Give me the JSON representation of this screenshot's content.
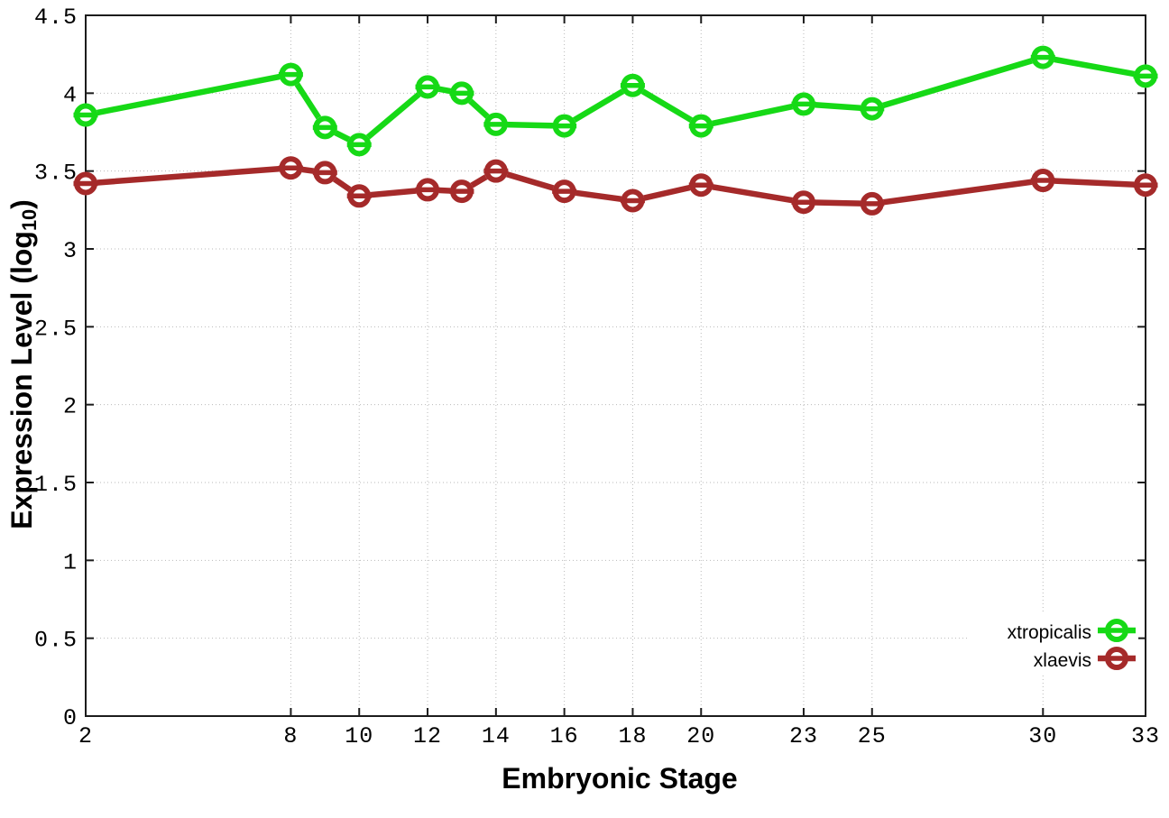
{
  "chart_data": {
    "type": "line",
    "title": "",
    "xlabel": "Embryonic Stage",
    "ylabel": "Expression Level (log10)",
    "ylabel_main": "Expression Level (log",
    "ylabel_sub": "10",
    "ylabel_close": ")",
    "xlim": [
      2,
      33
    ],
    "ylim": [
      0,
      4.5
    ],
    "x_tick_values": [
      2,
      8,
      10,
      12,
      14,
      16,
      18,
      20,
      23,
      25,
      30,
      33
    ],
    "x_tick_labels": [
      "2",
      "8",
      "10",
      "12",
      "14",
      "16",
      "18",
      "20",
      "23",
      "25",
      "30",
      "33"
    ],
    "y_tick_values": [
      0,
      0.5,
      1,
      1.5,
      2,
      2.5,
      3,
      3.5,
      4,
      4.5
    ],
    "y_tick_labels": [
      "0",
      "0.5",
      "1",
      "1.5",
      "2",
      "2.5",
      "3",
      "3.5",
      "4",
      "4.5"
    ],
    "grid": true,
    "grid_style": "dotted",
    "legend_position": "inside bottom-right",
    "marker": "open-circle-with-errorbar",
    "x": [
      2,
      8,
      9,
      10,
      12,
      13,
      14,
      16,
      18,
      20,
      23,
      25,
      30,
      33
    ],
    "series": [
      {
        "name": "xtropicalis",
        "color": "#16D916",
        "values": [
          3.86,
          4.12,
          3.78,
          3.67,
          4.04,
          4.0,
          3.8,
          3.79,
          4.05,
          3.79,
          3.93,
          3.9,
          4.23,
          4.11
        ]
      },
      {
        "name": "xlaevis",
        "color": "#A52A2A",
        "values": [
          3.42,
          3.52,
          3.49,
          3.34,
          3.38,
          3.37,
          3.5,
          3.37,
          3.31,
          3.41,
          3.3,
          3.29,
          3.44,
          3.41
        ]
      }
    ],
    "colors": {
      "background": "#ffffff",
      "grid": "#b9b9b9",
      "border": "#1c1c1c",
      "text": "#000000"
    }
  }
}
